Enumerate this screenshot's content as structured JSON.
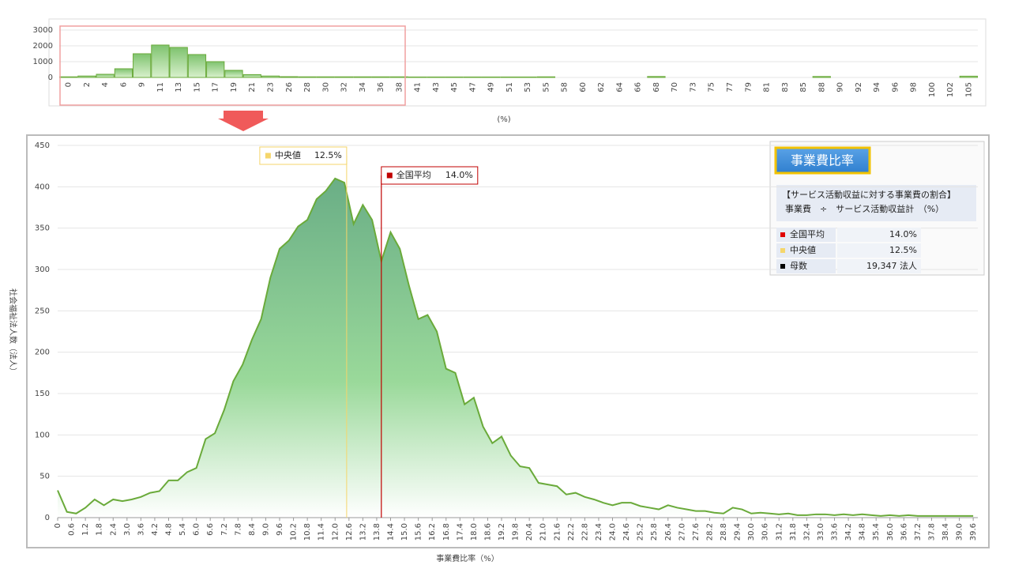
{
  "chart_data": [
    {
      "type": "bar",
      "categories": [
        "0",
        "2",
        "4",
        "6",
        "9",
        "11",
        "13",
        "15",
        "17",
        "19",
        "21",
        "23",
        "26",
        "28",
        "30",
        "32",
        "34",
        "36",
        "38",
        "41",
        "43",
        "45",
        "47",
        "49",
        "51",
        "53",
        "55",
        "58",
        "60",
        "62",
        "64",
        "66",
        "68",
        "70",
        "73",
        "75",
        "77",
        "79",
        "81",
        "83",
        "85",
        "88",
        "90",
        "92",
        "94",
        "96",
        "98",
        "100",
        "102",
        "105"
      ],
      "values": [
        40,
        90,
        200,
        550,
        1500,
        2050,
        1900,
        1450,
        1000,
        450,
        180,
        90,
        50,
        40,
        40,
        40,
        40,
        40,
        40,
        30,
        30,
        30,
        30,
        30,
        30,
        30,
        40,
        0,
        0,
        0,
        0,
        0,
        60,
        0,
        0,
        0,
        0,
        0,
        0,
        0,
        0,
        60,
        0,
        0,
        0,
        0,
        0,
        0,
        0,
        80
      ],
      "color": "#6aaa3a",
      "ylim": [
        0,
        3000
      ],
      "yticks": [
        0,
        1000,
        2000,
        3000
      ],
      "xlabel": "(%)",
      "grid": true
    },
    {
      "type": "area",
      "xlabel": "事業費比率（%）",
      "ylabel": "社会福祉法人数（法人）",
      "color": "#6aaa3a",
      "grid": true,
      "x": [
        0,
        0.4,
        0.8,
        1.2,
        1.6,
        2.0,
        2.4,
        2.8,
        3.2,
        3.6,
        4.0,
        4.4,
        4.8,
        5.2,
        5.6,
        6.0,
        6.4,
        6.8,
        7.2,
        7.6,
        8.0,
        8.4,
        8.8,
        9.2,
        9.6,
        10.0,
        10.4,
        10.8,
        11.2,
        11.6,
        12.0,
        12.4,
        12.8,
        13.2,
        13.6,
        14.0,
        14.4,
        14.8,
        15.2,
        15.6,
        16.0,
        16.4,
        16.8,
        17.2,
        17.6,
        18.0,
        18.4,
        18.8,
        19.2,
        19.6,
        20.0,
        20.4,
        20.8,
        21.2,
        21.6,
        22.0,
        22.4,
        22.8,
        23.2,
        23.6,
        24.0,
        24.4,
        24.8,
        25.2,
        25.6,
        26.0,
        26.4,
        26.8,
        27.2,
        27.6,
        28.0,
        28.4,
        28.8,
        29.2,
        29.6,
        30.0,
        30.4,
        30.8,
        31.2,
        31.6,
        32.0,
        32.4,
        32.8,
        33.2,
        33.6,
        34.0,
        34.4,
        34.8,
        35.2,
        35.6,
        36.0,
        36.4,
        36.8,
        37.2,
        37.6,
        38.0,
        38.4,
        38.8,
        39.2,
        39.6
      ],
      "values": [
        33,
        7,
        5,
        12,
        22,
        15,
        22,
        20,
        22,
        25,
        30,
        32,
        45,
        45,
        55,
        60,
        95,
        102,
        130,
        165,
        185,
        215,
        240,
        290,
        325,
        335,
        352,
        360,
        385,
        395,
        410,
        405,
        355,
        378,
        360,
        310,
        345,
        325,
        280,
        240,
        245,
        225,
        180,
        175,
        137,
        145,
        110,
        90,
        98,
        75,
        62,
        60,
        42,
        40,
        38,
        28,
        30,
        25,
        22,
        18,
        15,
        18,
        18,
        14,
        12,
        10,
        15,
        12,
        10,
        8,
        8,
        6,
        5,
        12,
        10,
        5,
        6,
        5,
        4,
        5,
        3,
        3,
        4,
        4,
        3,
        4,
        3,
        4,
        3,
        2,
        3,
        2,
        3,
        2,
        2,
        2,
        2,
        2,
        2,
        2
      ],
      "xlim": [
        0,
        39.8
      ],
      "ylim": [
        0,
        450
      ],
      "yticks": [
        0,
        50,
        100,
        150,
        200,
        250,
        300,
        350,
        400,
        450
      ],
      "xticks": [
        0,
        0.6,
        1.2,
        1.8,
        2.4,
        {
          "value": 3,
          "label": "3.0"
        },
        3.6,
        4.2,
        4.8,
        5.4,
        {
          "value": 6,
          "label": "6.0"
        },
        6.6,
        7.2,
        7.8,
        8.4,
        {
          "value": 9,
          "label": "9.0"
        },
        9.6,
        10.2,
        10.8,
        11.4,
        {
          "value": 12,
          "label": "12.0"
        },
        12.6,
        13.2,
        13.8,
        14.4,
        {
          "value": 15,
          "label": "15.0"
        },
        15.6,
        16.2,
        16.8,
        17.4,
        {
          "value": 18,
          "label": "18.0"
        },
        18.6,
        19.2,
        19.8,
        20.4,
        {
          "value": 21,
          "label": "21.0"
        },
        21.6,
        22.2,
        22.8,
        23.4,
        {
          "value": 24,
          "label": "24.0"
        },
        24.6,
        25.2,
        25.8,
        26.4,
        {
          "value": 27,
          "label": "27.0"
        },
        27.6,
        28.2,
        28.8,
        29.4,
        {
          "value": 30,
          "label": "30.0"
        },
        30.6,
        31.2,
        31.8,
        32.4,
        {
          "value": 33,
          "label": "33.0"
        },
        33.6,
        34.2,
        34.8,
        35.4,
        {
          "value": 36,
          "label": "36.0"
        },
        36.6,
        37.2,
        37.8,
        38.4,
        {
          "value": 39,
          "label": "39.0"
        },
        39.6
      ],
      "annotations": [
        {
          "label": "中央値",
          "x": 12.5,
          "value_label": "12.5%",
          "color": "#f5d66b"
        },
        {
          "label": "全国平均",
          "x": 14.0,
          "value_label": "14.0%",
          "color": "#c00000"
        }
      ]
    }
  ],
  "panel": {
    "title": "事業費比率",
    "description": [
      "【サービス活動収益に対する事業費の割合】",
      "事業費　÷　サービス活動収益計　（%）"
    ],
    "rows": [
      {
        "color": "#e00000",
        "cells": [
          "全国平均",
          "14.0%"
        ]
      },
      {
        "color": "#f5d66b",
        "cells": [
          "中央値",
          "12.5%"
        ]
      },
      {
        "color": "#000000",
        "cells": [
          "母数",
          "19,347 法人"
        ]
      }
    ]
  }
}
